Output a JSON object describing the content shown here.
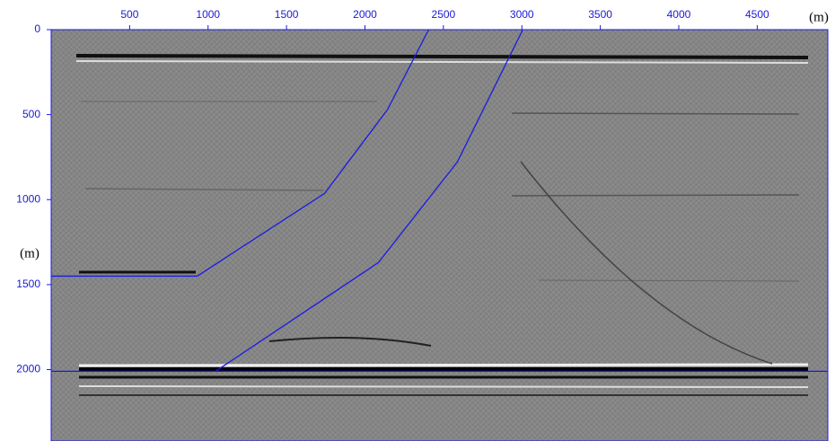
{
  "chart_data": {
    "type": "line",
    "x_label": "(m)",
    "y_label": "(m)",
    "xlim": [
      0,
      4950
    ],
    "ylim": [
      0,
      2420
    ],
    "y_inverted": true,
    "xticks": [
      500,
      1000,
      1500,
      2000,
      2500,
      3000,
      3500,
      4000,
      4500
    ],
    "yticks": [
      0,
      500,
      1000,
      1500,
      2000
    ],
    "series": [
      {
        "color": "#1a1ae6",
        "x": [
          0,
          931,
          1743,
          2143,
          2406
        ],
        "values": [
          1450,
          1450,
          963,
          471,
          0
        ]
      },
      {
        "color": "#1a1ae6",
        "x": [
          1046,
          2086,
          2589,
          3006
        ],
        "values": [
          2011,
          1370,
          778,
          0
        ]
      },
      {
        "color": "#1a1ae6",
        "x": [
          0,
          4950
        ],
        "values": [
          2010,
          2010
        ]
      }
    ]
  }
}
